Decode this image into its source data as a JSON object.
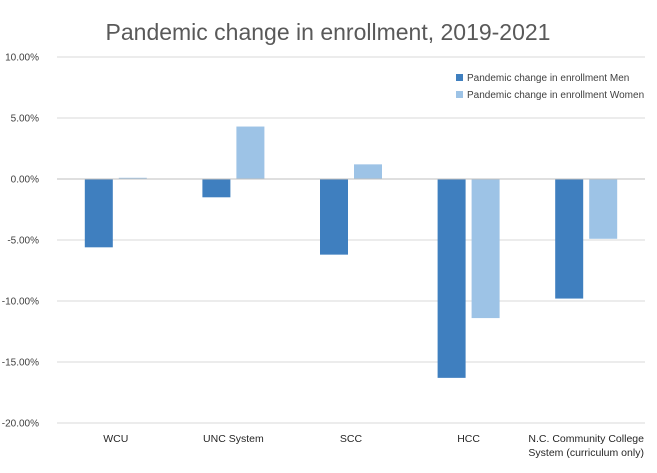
{
  "chart_data": {
    "type": "bar",
    "title": "Pandemic change in enrollment, 2019-2021",
    "xlabel": "",
    "ylabel": "",
    "ylim": [
      -20,
      10
    ],
    "yticks": [
      10,
      5,
      0,
      -5,
      -10,
      -15,
      -20
    ],
    "ytick_labels": [
      "10.00%",
      "5.00%",
      "0.00%",
      "-5.00%",
      "-10.00%",
      "-15.00%",
      "-20.00%"
    ],
    "grid": true,
    "legend_position": "top-right",
    "categories": [
      [
        "WCU"
      ],
      [
        "UNC System"
      ],
      [
        "SCC"
      ],
      [
        "HCC"
      ],
      [
        "N.C. Community College",
        "System (curriculum only)"
      ]
    ],
    "series": [
      {
        "name": "Pandemic change in enrollment Men",
        "color": "#3f7fbf",
        "values": [
          -5.6,
          -1.5,
          -6.2,
          -16.3,
          -9.8
        ]
      },
      {
        "name": "Pandemic change in enrollment Women",
        "color": "#9dc3e6",
        "values": [
          0.1,
          4.3,
          1.2,
          -11.4,
          -4.9
        ]
      }
    ]
  }
}
